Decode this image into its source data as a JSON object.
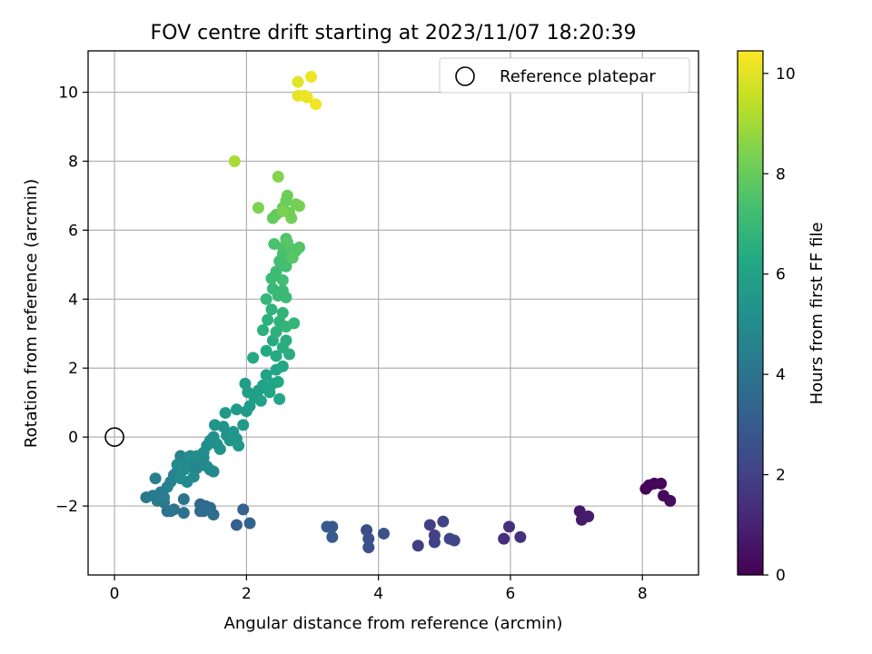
{
  "chart_data": {
    "type": "scatter",
    "title": "FOV centre drift starting at 2023/11/07 18:20:39",
    "xlabel": "Angular distance from reference (arcmin)",
    "ylabel": "Rotation from reference (arcmin)",
    "xlim": [
      -0.4,
      8.85
    ],
    "ylim": [
      -4.0,
      11.2
    ],
    "xticks": [
      0,
      2,
      4,
      6,
      8
    ],
    "yticks": [
      -2,
      0,
      2,
      4,
      6,
      8,
      10
    ],
    "xtick_labels": [
      "0",
      "2",
      "4",
      "6",
      "8"
    ],
    "ytick_labels": [
      "−2",
      "0",
      "2",
      "4",
      "6",
      "8",
      "10"
    ],
    "grid": true,
    "legend": {
      "placement": "top-right",
      "entries": [
        {
          "label": "Reference platepar",
          "marker": "open-circle"
        }
      ]
    },
    "reference_point": {
      "x": 0,
      "y": 0
    },
    "colorbar": {
      "label": "Hours from first FF file",
      "colormap": "viridis",
      "range": [
        0,
        10.45
      ],
      "ticks": [
        0,
        2,
        4,
        6,
        8,
        10
      ],
      "tick_labels": [
        "0",
        "2",
        "4",
        "6",
        "8",
        "10"
      ]
    },
    "points": [
      [
        8.05,
        -1.5,
        0.05
      ],
      [
        8.1,
        -1.4,
        0.1
      ],
      [
        8.18,
        -1.35,
        0.15
      ],
      [
        8.28,
        -1.35,
        0.2
      ],
      [
        8.32,
        -1.7,
        0.25
      ],
      [
        8.42,
        -1.85,
        0.3
      ],
      [
        7.05,
        -2.15,
        0.7
      ],
      [
        7.08,
        -2.4,
        0.75
      ],
      [
        7.18,
        -2.3,
        0.8
      ],
      [
        5.9,
        -2.95,
        1.4
      ],
      [
        5.98,
        -2.6,
        1.45
      ],
      [
        6.15,
        -2.9,
        1.5
      ],
      [
        4.6,
        -3.15,
        1.9
      ],
      [
        4.78,
        -2.55,
        1.95
      ],
      [
        4.85,
        -2.85,
        2.0
      ],
      [
        4.85,
        -3.05,
        2.05
      ],
      [
        4.98,
        -2.45,
        2.1
      ],
      [
        5.08,
        -2.95,
        2.15
      ],
      [
        5.15,
        -3.0,
        2.2
      ],
      [
        3.82,
        -2.7,
        2.5
      ],
      [
        3.85,
        -2.95,
        2.55
      ],
      [
        3.85,
        -3.2,
        2.6
      ],
      [
        4.08,
        -2.8,
        2.65
      ],
      [
        3.22,
        -2.6,
        2.9
      ],
      [
        3.3,
        -2.6,
        2.95
      ],
      [
        3.3,
        -2.9,
        3.0
      ],
      [
        1.85,
        -2.55,
        3.2
      ],
      [
        1.95,
        -2.1,
        3.25
      ],
      [
        2.05,
        -2.5,
        3.3
      ],
      [
        1.3,
        -2.15,
        3.5
      ],
      [
        1.3,
        -1.95,
        3.55
      ],
      [
        1.38,
        -2.0,
        3.6
      ],
      [
        1.45,
        -2.05,
        3.65
      ],
      [
        1.5,
        -2.25,
        3.7
      ],
      [
        1.35,
        -2.15,
        3.75
      ],
      [
        0.8,
        -2.15,
        3.85
      ],
      [
        0.9,
        -2.1,
        3.9
      ],
      [
        1.05,
        -2.2,
        3.95
      ],
      [
        1.05,
        -1.8,
        4.0
      ],
      [
        0.75,
        -1.9,
        4.05
      ],
      [
        0.85,
        -2.15,
        4.1
      ],
      [
        0.48,
        -1.75,
        4.2
      ],
      [
        0.58,
        -1.7,
        4.25
      ],
      [
        0.65,
        -1.85,
        4.3
      ],
      [
        0.7,
        -1.6,
        4.35
      ],
      [
        0.75,
        -1.75,
        4.4
      ],
      [
        0.62,
        -1.2,
        4.45
      ],
      [
        0.8,
        -1.45,
        4.5
      ],
      [
        0.85,
        -1.3,
        4.55
      ],
      [
        0.9,
        -1.1,
        4.6
      ],
      [
        0.95,
        -1.0,
        4.65
      ],
      [
        1.0,
        -0.55,
        4.7
      ],
      [
        1.05,
        -0.7,
        4.72
      ],
      [
        1.1,
        -0.6,
        4.74
      ],
      [
        1.15,
        -0.85,
        4.76
      ],
      [
        1.2,
        -0.65,
        4.78
      ],
      [
        1.25,
        -0.9,
        4.8
      ],
      [
        1.3,
        -0.75,
        4.82
      ],
      [
        1.35,
        -0.6,
        4.84
      ],
      [
        1.4,
        -0.85,
        4.86
      ],
      [
        1.45,
        -0.95,
        4.88
      ],
      [
        1.5,
        -1.0,
        4.9
      ],
      [
        1.2,
        -1.15,
        4.92
      ],
      [
        1.1,
        -1.3,
        4.94
      ],
      [
        1.0,
        -1.2,
        4.96
      ],
      [
        0.95,
        -0.8,
        4.98
      ],
      [
        1.05,
        -0.95,
        5.0
      ],
      [
        1.15,
        -0.55,
        5.02
      ],
      [
        1.25,
        -0.55,
        5.04
      ],
      [
        1.35,
        -0.45,
        5.06
      ],
      [
        1.4,
        -0.25,
        5.1
      ],
      [
        1.45,
        -0.1,
        5.14
      ],
      [
        1.5,
        0.0,
        5.18
      ],
      [
        1.55,
        -0.2,
        5.22
      ],
      [
        1.6,
        -0.35,
        5.26
      ],
      [
        1.52,
        0.35,
        5.3
      ],
      [
        1.65,
        0.3,
        5.34
      ],
      [
        1.7,
        0.05,
        5.38
      ],
      [
        1.75,
        -0.1,
        5.42
      ],
      [
        1.8,
        0.15,
        5.46
      ],
      [
        1.85,
        -0.05,
        5.5
      ],
      [
        1.88,
        -0.25,
        5.54
      ],
      [
        1.68,
        0.7,
        5.58
      ],
      [
        1.85,
        0.8,
        5.62
      ],
      [
        1.95,
        0.35,
        5.66
      ],
      [
        2.0,
        0.75,
        5.7
      ],
      [
        2.05,
        0.9,
        5.74
      ],
      [
        1.98,
        1.55,
        5.78
      ],
      [
        2.02,
        1.3,
        5.82
      ],
      [
        2.12,
        1.15,
        5.86
      ],
      [
        2.18,
        1.35,
        5.9
      ],
      [
        2.22,
        1.05,
        5.94
      ],
      [
        2.25,
        1.5,
        5.98
      ],
      [
        2.3,
        1.8,
        6.02
      ],
      [
        2.35,
        1.3,
        6.06
      ],
      [
        2.4,
        1.55,
        6.1
      ],
      [
        2.45,
        1.95,
        6.14
      ],
      [
        2.5,
        1.1,
        6.18
      ],
      [
        2.48,
        1.6,
        6.22
      ],
      [
        2.55,
        2.05,
        6.26
      ],
      [
        2.1,
        2.3,
        6.3
      ],
      [
        2.3,
        2.5,
        6.34
      ],
      [
        2.4,
        2.8,
        6.38
      ],
      [
        2.45,
        2.35,
        6.42
      ],
      [
        2.55,
        2.6,
        6.46
      ],
      [
        2.6,
        2.8,
        6.5
      ],
      [
        2.65,
        2.4,
        6.54
      ],
      [
        2.25,
        3.1,
        6.58
      ],
      [
        2.32,
        3.4,
        6.62
      ],
      [
        2.38,
        3.7,
        6.66
      ],
      [
        2.45,
        3.05,
        6.7
      ],
      [
        2.5,
        3.35,
        6.74
      ],
      [
        2.55,
        3.6,
        6.78
      ],
      [
        2.6,
        3.2,
        6.82
      ],
      [
        2.72,
        3.3,
        6.86
      ],
      [
        2.3,
        4.0,
        6.9
      ],
      [
        2.4,
        4.3,
        6.94
      ],
      [
        2.48,
        4.1,
        6.98
      ],
      [
        2.55,
        4.25,
        7.02
      ],
      [
        2.6,
        4.05,
        7.06
      ],
      [
        2.38,
        4.6,
        7.1
      ],
      [
        2.45,
        4.8,
        7.14
      ],
      [
        2.55,
        4.55,
        7.18
      ],
      [
        2.6,
        4.95,
        7.22
      ],
      [
        2.5,
        5.1,
        7.26
      ],
      [
        2.55,
        5.3,
        7.3
      ],
      [
        2.6,
        5.05,
        7.34
      ],
      [
        2.65,
        5.25,
        7.38
      ],
      [
        2.42,
        5.6,
        7.42
      ],
      [
        2.55,
        5.5,
        7.46
      ],
      [
        2.6,
        5.75,
        7.5
      ],
      [
        2.68,
        5.45,
        7.54
      ],
      [
        2.75,
        5.4,
        7.58
      ],
      [
        2.8,
        5.5,
        7.62
      ],
      [
        2.62,
        5.65,
        7.66
      ],
      [
        2.7,
        5.2,
        7.7
      ],
      [
        2.4,
        6.35,
        7.9
      ],
      [
        2.45,
        6.45,
        7.95
      ],
      [
        2.55,
        6.65,
        8.0
      ],
      [
        2.6,
        6.85,
        8.05
      ],
      [
        2.62,
        7.0,
        8.1
      ],
      [
        2.65,
        6.5,
        8.15
      ],
      [
        2.68,
        6.35,
        8.2
      ],
      [
        2.75,
        6.75,
        8.25
      ],
      [
        2.8,
        6.7,
        8.3
      ],
      [
        2.55,
        6.55,
        8.35
      ],
      [
        2.18,
        6.65,
        8.4
      ],
      [
        2.48,
        7.55,
        8.5
      ],
      [
        1.82,
        8.0,
        9.1
      ],
      [
        2.78,
        10.3,
        10.0
      ],
      [
        2.78,
        9.9,
        10.05
      ],
      [
        2.88,
        9.9,
        10.1
      ],
      [
        2.92,
        9.85,
        10.15
      ],
      [
        2.98,
        10.45,
        10.2
      ],
      [
        3.05,
        9.65,
        10.25
      ]
    ]
  }
}
